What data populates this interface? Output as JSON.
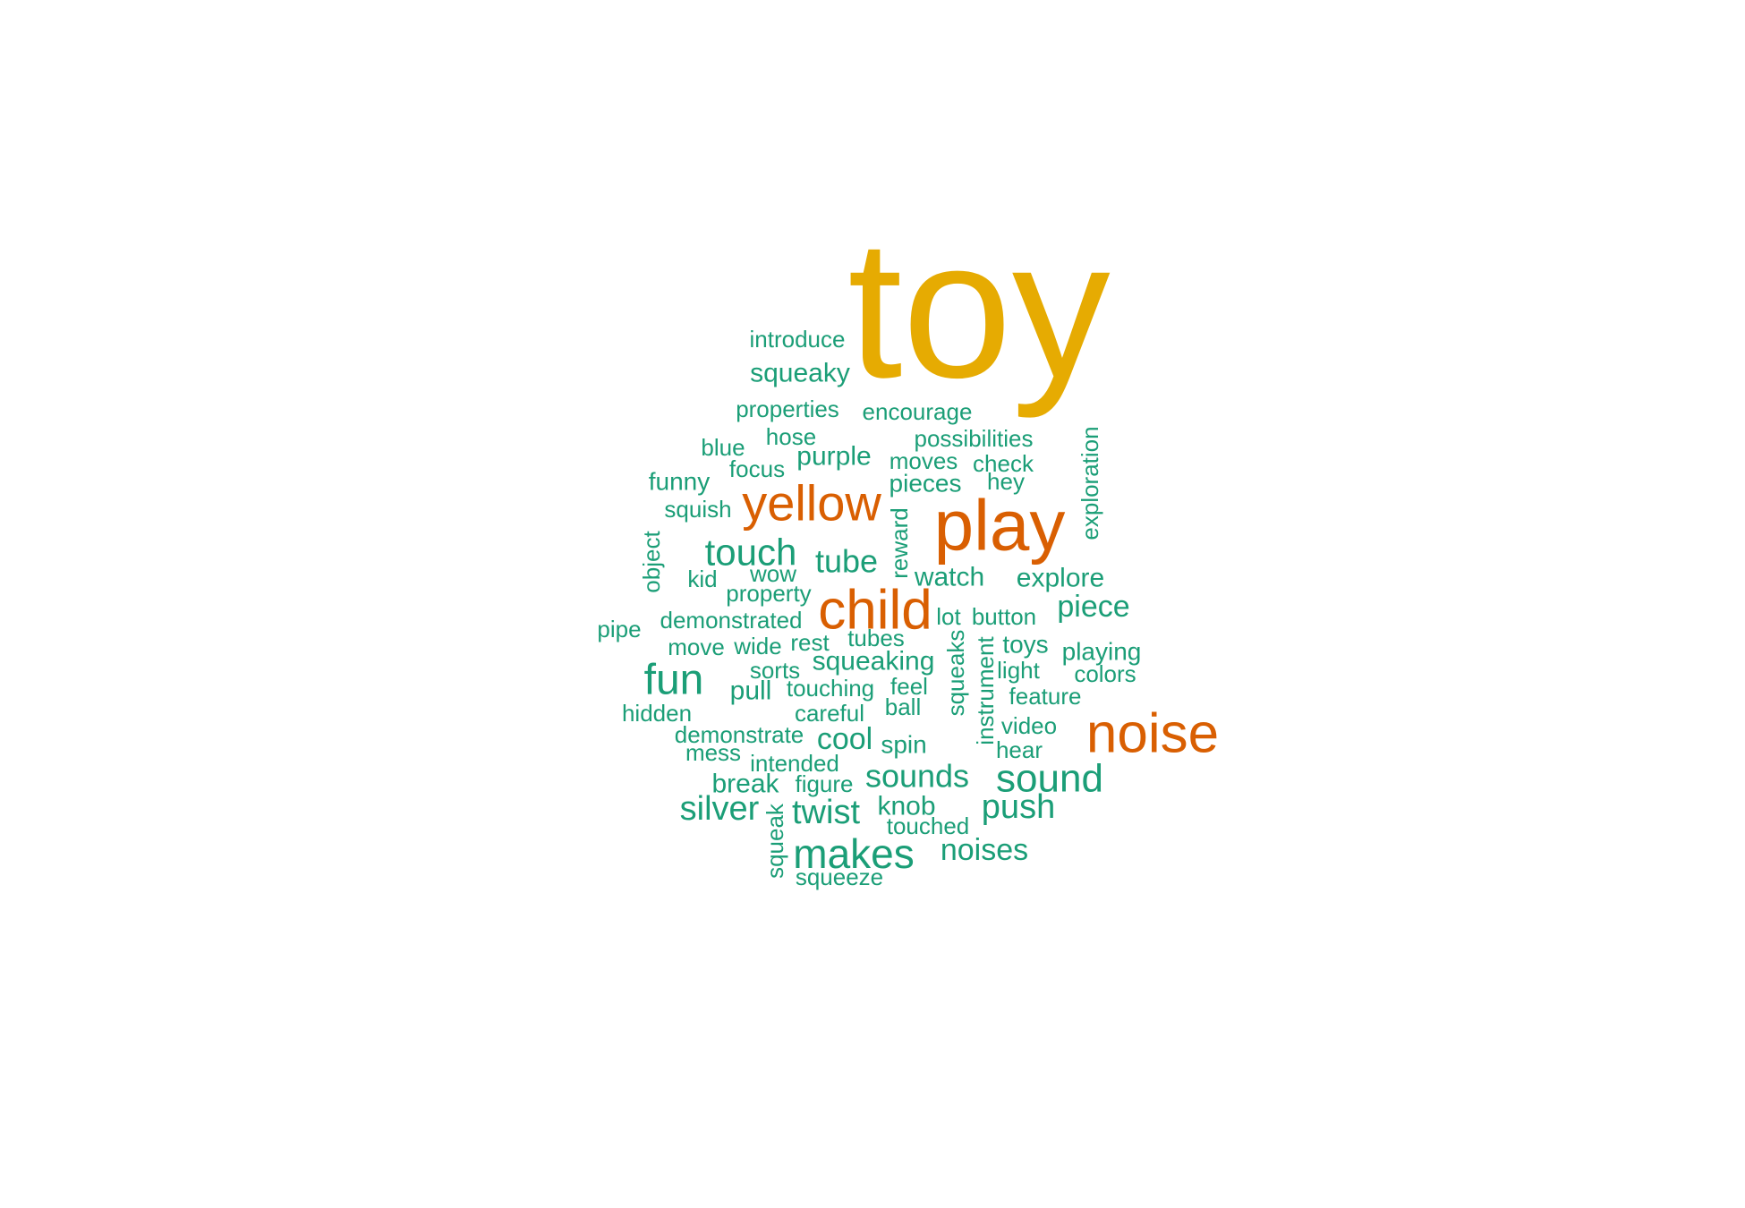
{
  "palette": {
    "top": "#E6AB02",
    "high": "#D95F02",
    "base": "#1B9E77"
  },
  "words": [
    {
      "text": "toy",
      "tier": "top"
    },
    {
      "text": "play",
      "tier": "high"
    },
    {
      "text": "noise",
      "tier": "high"
    },
    {
      "text": "child",
      "tier": "high"
    },
    {
      "text": "yellow",
      "tier": "high"
    },
    {
      "text": "makes",
      "tier": "base"
    },
    {
      "text": "sound",
      "tier": "base"
    },
    {
      "text": "fun",
      "tier": "base"
    },
    {
      "text": "touch",
      "tier": "base"
    },
    {
      "text": "twist",
      "tier": "base"
    },
    {
      "text": "silver",
      "tier": "base"
    },
    {
      "text": "push",
      "tier": "base"
    },
    {
      "text": "sounds",
      "tier": "base"
    },
    {
      "text": "tube",
      "tier": "base"
    },
    {
      "text": "noises",
      "tier": "base"
    },
    {
      "text": "cool",
      "tier": "base"
    },
    {
      "text": "piece",
      "tier": "base"
    },
    {
      "text": "squeaky",
      "tier": "base"
    },
    {
      "text": "knob",
      "tier": "base"
    },
    {
      "text": "explore",
      "tier": "base"
    },
    {
      "text": "watch",
      "tier": "base"
    },
    {
      "text": "break",
      "tier": "base"
    },
    {
      "text": "purple",
      "tier": "base"
    },
    {
      "text": "squeaking",
      "tier": "base"
    },
    {
      "text": "playing",
      "tier": "base"
    },
    {
      "text": "spin",
      "tier": "base"
    },
    {
      "text": "toys",
      "tier": "base"
    },
    {
      "text": "pull",
      "tier": "base"
    },
    {
      "text": "funny",
      "tier": "base"
    },
    {
      "text": "pieces",
      "tier": "base"
    },
    {
      "text": "encourage",
      "tier": "base"
    },
    {
      "text": "introduce",
      "tier": "base"
    },
    {
      "text": "properties",
      "tier": "base"
    },
    {
      "text": "possibilities",
      "tier": "base"
    },
    {
      "text": "hose",
      "tier": "base"
    },
    {
      "text": "blue",
      "tier": "base"
    },
    {
      "text": "focus",
      "tier": "base"
    },
    {
      "text": "moves",
      "tier": "base"
    },
    {
      "text": "check",
      "tier": "base"
    },
    {
      "text": "hey",
      "tier": "base"
    },
    {
      "text": "squish",
      "tier": "base"
    },
    {
      "text": "wow",
      "tier": "base"
    },
    {
      "text": "kid",
      "tier": "base"
    },
    {
      "text": "property",
      "tier": "base"
    },
    {
      "text": "pipe",
      "tier": "base"
    },
    {
      "text": "demonstrated",
      "tier": "base"
    },
    {
      "text": "lot",
      "tier": "base"
    },
    {
      "text": "button",
      "tier": "base"
    },
    {
      "text": "move",
      "tier": "base"
    },
    {
      "text": "wide",
      "tier": "base"
    },
    {
      "text": "rest",
      "tier": "base"
    },
    {
      "text": "tubes",
      "tier": "base"
    },
    {
      "text": "light",
      "tier": "base"
    },
    {
      "text": "colors",
      "tier": "base"
    },
    {
      "text": "sorts",
      "tier": "base"
    },
    {
      "text": "touching",
      "tier": "base"
    },
    {
      "text": "feel",
      "tier": "base"
    },
    {
      "text": "feature",
      "tier": "base"
    },
    {
      "text": "hidden",
      "tier": "base"
    },
    {
      "text": "careful",
      "tier": "base"
    },
    {
      "text": "ball",
      "tier": "base"
    },
    {
      "text": "video",
      "tier": "base"
    },
    {
      "text": "demonstrate",
      "tier": "base"
    },
    {
      "text": "hear",
      "tier": "base"
    },
    {
      "text": "mess",
      "tier": "base"
    },
    {
      "text": "intended",
      "tier": "base"
    },
    {
      "text": "figure",
      "tier": "base"
    },
    {
      "text": "touched",
      "tier": "base"
    },
    {
      "text": "squeeze",
      "tier": "base"
    },
    {
      "text": "exploration",
      "tier": "base"
    },
    {
      "text": "object",
      "tier": "base"
    },
    {
      "text": "reward",
      "tier": "base"
    },
    {
      "text": "squeaks",
      "tier": "base"
    },
    {
      "text": "instrument",
      "tier": "base"
    },
    {
      "text": "squeak",
      "tier": "base"
    }
  ]
}
